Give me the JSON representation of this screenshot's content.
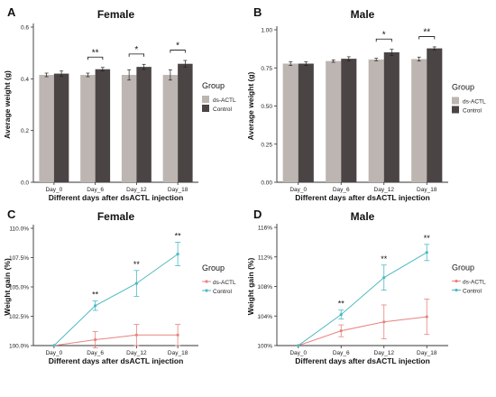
{
  "colors": {
    "ds_actl_bar": "#bdb5b2",
    "control_bar": "#4a4444",
    "ds_actl_line": "#e8837f",
    "control_line": "#4cb9c2",
    "significance": "#111111"
  },
  "chart_data": [
    {
      "panel": "A",
      "type": "bar",
      "title": "Female",
      "xlabel": "Different days after dsACTL injection",
      "ylabel": "Average weight (g)",
      "categories": [
        "Day_0",
        "Day_6",
        "Day_12",
        "Day_18"
      ],
      "ylim": [
        0,
        0.6
      ],
      "yticks": [
        "0.0",
        "0.2",
        "0.4",
        "0.6"
      ],
      "series": [
        {
          "name": "ds-ACTL",
          "values": [
            0.415,
            0.415,
            0.415,
            0.415
          ],
          "errors": [
            0.007,
            0.007,
            0.02,
            0.02
          ]
        },
        {
          "name": "Control",
          "values": [
            0.42,
            0.437,
            0.446,
            0.458
          ],
          "errors": [
            0.01,
            0.007,
            0.01,
            0.013
          ]
        }
      ],
      "significance": [
        {
          "category": "Day_6",
          "label": "**"
        },
        {
          "category": "Day_12",
          "label": "*"
        },
        {
          "category": "Day_18",
          "label": "*"
        }
      ],
      "legend": {
        "title": "Group",
        "placement": "right"
      }
    },
    {
      "panel": "B",
      "type": "bar",
      "title": "Male",
      "xlabel": "Different days after dsACTL injection",
      "ylabel": "Average weight (g)",
      "categories": [
        "Day_0",
        "Day_6",
        "Day_12",
        "Day_18"
      ],
      "ylim": [
        0,
        1.0
      ],
      "yticks": [
        "0.00",
        "0.25",
        "0.50",
        "0.75",
        "1.00"
      ],
      "series": [
        {
          "name": "ds-ACTL",
          "values": [
            0.778,
            0.795,
            0.805,
            0.808
          ],
          "errors": [
            0.012,
            0.008,
            0.008,
            0.013
          ]
        },
        {
          "name": "Control",
          "values": [
            0.778,
            0.81,
            0.852,
            0.878
          ],
          "errors": [
            0.012,
            0.013,
            0.02,
            0.01
          ]
        }
      ],
      "significance": [
        {
          "category": "Day_12",
          "label": "*"
        },
        {
          "category": "Day_18",
          "label": "**"
        }
      ],
      "legend": {
        "title": "Group",
        "placement": "right"
      }
    },
    {
      "panel": "C",
      "type": "line",
      "title": "Female",
      "xlabel": "Different days after dsACTL injection",
      "ylabel": "Weight gain (%)",
      "categories": [
        "Day_0",
        "Day_6",
        "Day_12",
        "Day_18"
      ],
      "ylim": [
        100,
        110.0
      ],
      "yticks": [
        100,
        102.5,
        105,
        107.5,
        110
      ],
      "ytick_labels": [
        "100.0%",
        "102.5%",
        "105.0%",
        "107.5%",
        "110.0%"
      ],
      "series": [
        {
          "name": "ds-ACTL",
          "values": [
            100.0,
            100.5,
            100.9,
            100.9
          ],
          "errors": [
            0,
            0.7,
            0.9,
            0.9
          ]
        },
        {
          "name": "Control",
          "values": [
            100.0,
            103.4,
            105.3,
            107.8
          ],
          "errors": [
            0,
            0.4,
            1.1,
            1.0
          ]
        }
      ],
      "significance": [
        {
          "category": "Day_6",
          "label": "**"
        },
        {
          "category": "Day_12",
          "label": "**"
        },
        {
          "category": "Day_18",
          "label": "**"
        }
      ],
      "legend": {
        "title": "Group",
        "placement": "right"
      }
    },
    {
      "panel": "D",
      "type": "line",
      "title": "Male",
      "xlabel": "Different days after dsACTL injection",
      "ylabel": "Weight gain (%)",
      "categories": [
        "Day_0",
        "Day_6",
        "Day_12",
        "Day_18"
      ],
      "ylim": [
        100,
        116
      ],
      "yticks": [
        100,
        104,
        108,
        112,
        116
      ],
      "ytick_labels": [
        "100%",
        "104%",
        "108%",
        "112%",
        "116%"
      ],
      "series": [
        {
          "name": "ds-ACTL",
          "values": [
            100.0,
            102.0,
            103.2,
            103.9
          ],
          "errors": [
            0,
            0.8,
            2.3,
            2.4
          ]
        },
        {
          "name": "Control",
          "values": [
            100.0,
            104.2,
            109.2,
            112.6
          ],
          "errors": [
            0,
            0.6,
            1.7,
            1.1
          ]
        }
      ],
      "significance": [
        {
          "category": "Day_6",
          "label": "**"
        },
        {
          "category": "Day_12",
          "label": "**"
        },
        {
          "category": "Day_18",
          "label": "**"
        }
      ],
      "legend": {
        "title": "Group",
        "placement": "right"
      }
    }
  ]
}
